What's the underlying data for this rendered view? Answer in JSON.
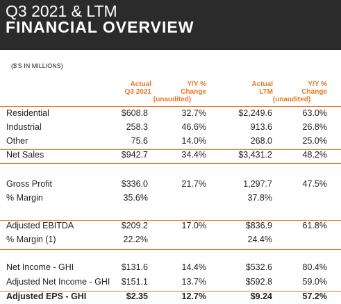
{
  "header": {
    "title": "Q3 2021 & LTM",
    "subtitle": "FINANCIAL OVERVIEW"
  },
  "units": "($'S IN MILLIONS)",
  "table": {
    "column_groups": [
      {
        "columns": [
          [
            "Actual",
            "Q3 2021"
          ],
          [
            "Y/Y %",
            "Change"
          ]
        ],
        "note": "(unaudited)"
      },
      {
        "columns": [
          [
            "Actual",
            "LTM"
          ],
          [
            "Y/Y %",
            "Change"
          ]
        ],
        "note": "(unaudited)"
      }
    ],
    "rows": [
      [
        "Residential",
        "$608.8",
        "32.7%",
        "$2,249.6",
        "63.0%"
      ],
      [
        "Industrial",
        "258.3",
        "46.6%",
        "913.6",
        "26.8%"
      ],
      [
        "Other",
        "75.6",
        "14.0%",
        "268.0",
        "25.0%"
      ],
      [
        "Net Sales",
        "$942.7",
        "34.4%",
        "$3,431.2",
        "48.2%"
      ],
      [
        "Gross Profit",
        "$336.0",
        "21.7%",
        "1,297.7",
        "47.5%"
      ],
      [
        "% Margin",
        "35.6%",
        null,
        "37.8%",
        null
      ],
      [
        "Adjusted EBITDA",
        "$209.2",
        "17.0%",
        "$836.9",
        "61.8%"
      ],
      [
        "% Margin (1)",
        "22.2%",
        null,
        "24.4%",
        null
      ],
      [
        "Net Income - GHI",
        "$131.6",
        "14.4%",
        "$532.6",
        "80.4%"
      ],
      [
        "Adjusted Net Income - GHI",
        "$151.1",
        "13.7%",
        "$592.8",
        "59.0%"
      ],
      [
        "Adjusted EPS - GHI",
        "$2.35",
        "12.7%",
        "$9.24",
        "57.2%"
      ]
    ]
  }
}
